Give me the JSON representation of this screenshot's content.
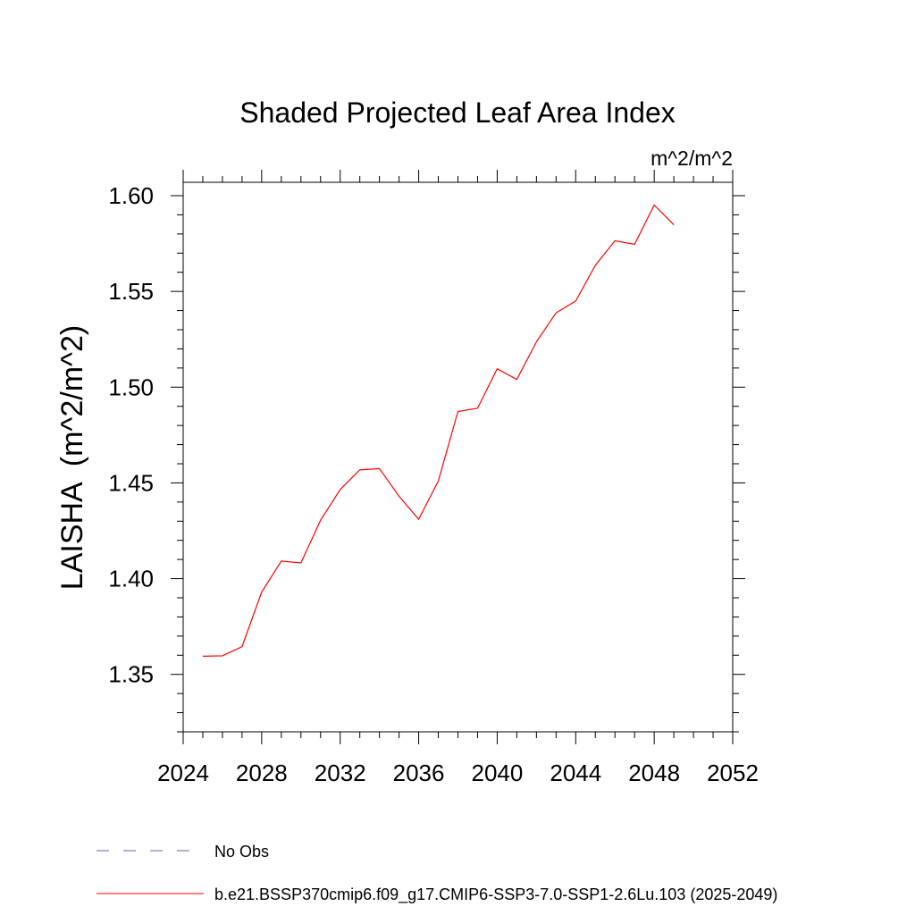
{
  "chart_data": {
    "type": "line",
    "title": "Shaded Projected Leaf Area Index",
    "units_label": "m^2/m^2",
    "ylabel": "LAISHA  (m^2/m^2)",
    "xlabel": "",
    "xlim": [
      2024,
      2052
    ],
    "ylim": [
      1.32,
      1.607
    ],
    "x_ticks": [
      2024,
      2028,
      2032,
      2036,
      2040,
      2044,
      2048,
      2052
    ],
    "y_ticks": [
      1.35,
      1.4,
      1.45,
      1.5,
      1.55,
      1.6
    ],
    "y_tick_labels": [
      "1.35",
      "1.40",
      "1.45",
      "1.50",
      "1.55",
      "1.60"
    ],
    "x_minor_step": 1,
    "y_minor_step": 0.01,
    "grid": false,
    "legend_position": "bottom-left",
    "x": [
      2025,
      2026,
      2027,
      2028,
      2029,
      2030,
      2031,
      2032,
      2033,
      2034,
      2035,
      2036,
      2037,
      2038,
      2039,
      2040,
      2041,
      2042,
      2043,
      2044,
      2045,
      2046,
      2047,
      2048,
      2049
    ],
    "series": [
      {
        "name": "b.e21.BSSP370cmip6.f09_g17.CMIP6-SSP3-7.0-SSP1-2.6Lu.103 (2025-2049)",
        "color": "#ff0000",
        "style": "solid",
        "values": [
          1.3595,
          1.3597,
          1.3645,
          1.393,
          1.4092,
          1.4082,
          1.4305,
          1.4465,
          1.4568,
          1.4575,
          1.443,
          1.431,
          1.451,
          1.4873,
          1.489,
          1.5096,
          1.504,
          1.5237,
          1.5388,
          1.545,
          1.5636,
          1.5765,
          1.5746,
          1.5951,
          1.5848
        ]
      }
    ],
    "legend": [
      {
        "label": "No Obs",
        "color": "#6e5ea8",
        "style": "dashed"
      },
      {
        "label": "b.e21.BSSP370cmip6.f09_g17.CMIP6-SSP3-7.0-SSP1-2.6Lu.103 (2025-2049)",
        "color": "#ff0000",
        "style": "solid"
      }
    ]
  }
}
